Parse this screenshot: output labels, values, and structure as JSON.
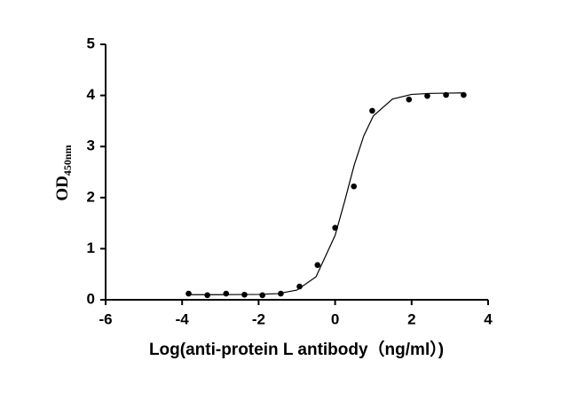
{
  "chart_data": {
    "type": "scatter",
    "x_label": "Log(anti-protein L antibody（ng/ml）)",
    "y_label": {
      "text": "OD",
      "subscript": "450nm"
    },
    "x": [
      -3.83,
      -3.34,
      -2.85,
      -2.37,
      -1.9,
      -1.42,
      -0.93,
      -0.46,
      0.0,
      0.49,
      0.97,
      1.93,
      2.41,
      2.9,
      3.36
    ],
    "values": [
      0.12,
      0.09,
      0.12,
      0.1,
      0.09,
      0.12,
      0.26,
      0.68,
      1.41,
      2.22,
      3.7,
      3.92,
      3.99,
      4.01,
      4.01
    ],
    "color": "#000000",
    "fit": {
      "type": "line",
      "x": [
        -3.83,
        -3,
        -2,
        -1.5,
        -1,
        -0.5,
        0,
        0.25,
        0.5,
        0.75,
        1,
        1.5,
        2,
        2.5,
        3.36
      ],
      "values": [
        0.1,
        0.1,
        0.105,
        0.12,
        0.19,
        0.45,
        1.26,
        1.93,
        2.64,
        3.21,
        3.6,
        3.93,
        4.02,
        4.04,
        4.05
      ],
      "color": "#000000"
    },
    "xlim": [
      -6,
      4
    ],
    "ylim": [
      0,
      5
    ],
    "xticks": [
      -6,
      -4,
      -2,
      0,
      2,
      4
    ],
    "yticks": [
      0,
      1,
      2,
      3,
      4,
      5
    ],
    "grid": false
  }
}
